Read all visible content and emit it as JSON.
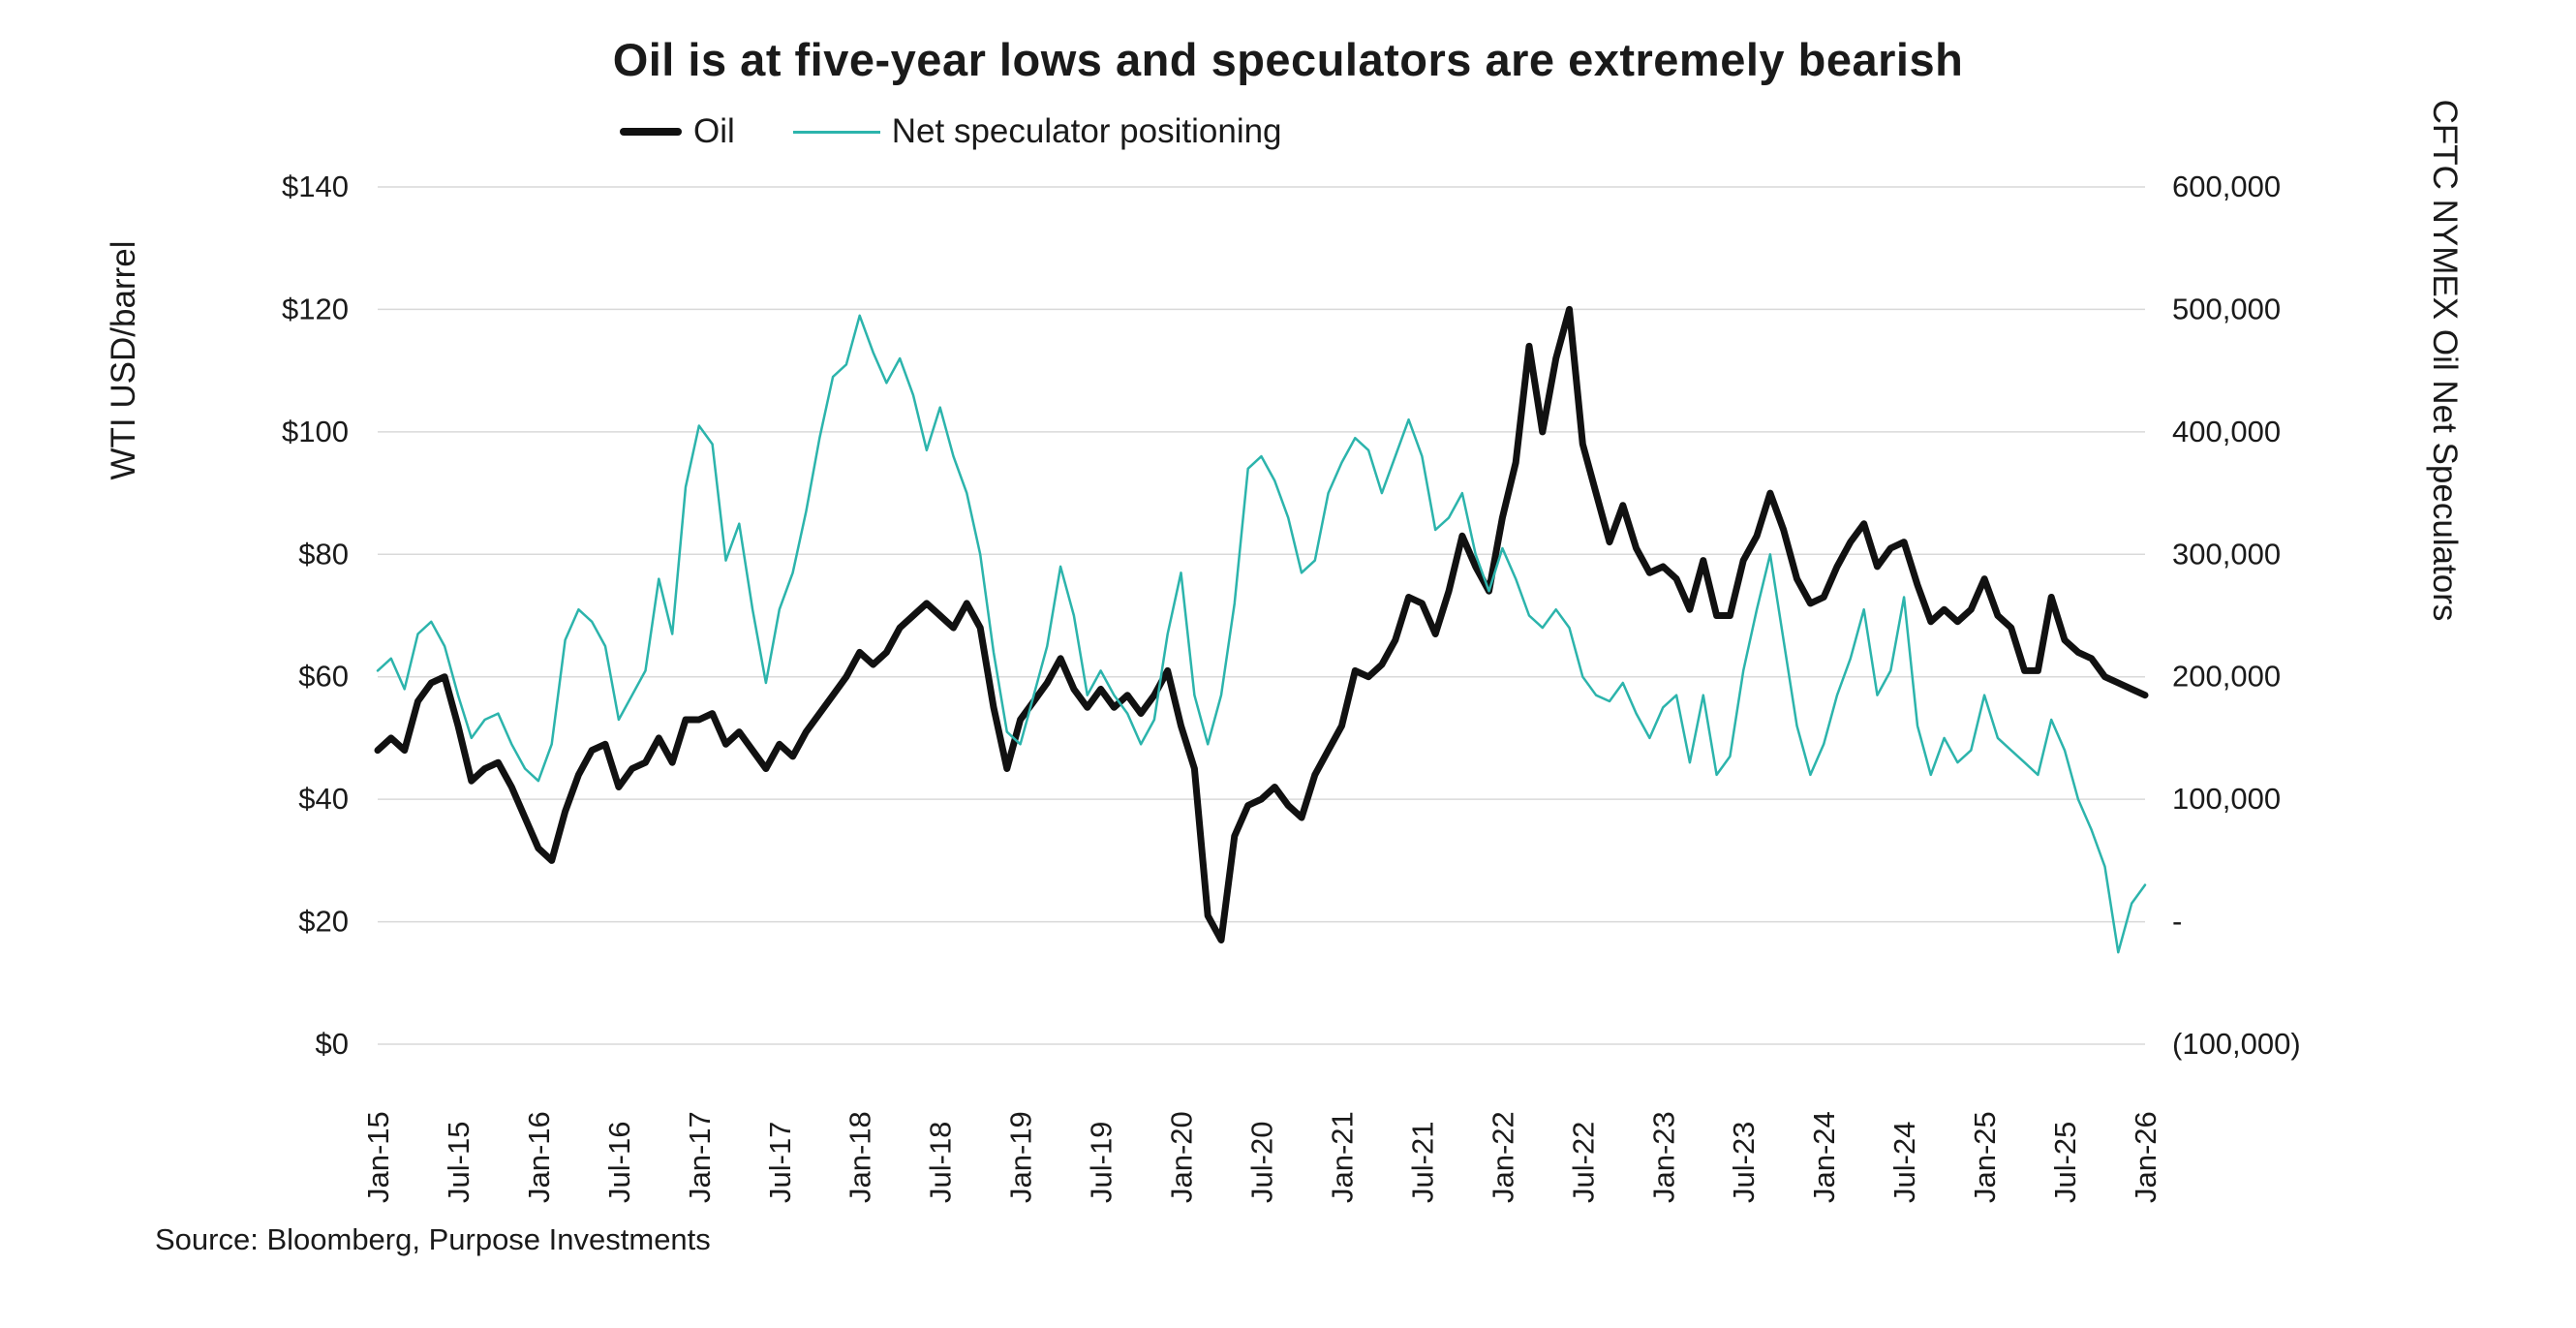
{
  "title": "Oil is at five-year lows and speculators are extremely bearish",
  "source": "Source: Bloomberg, Purpose Investments",
  "legend": {
    "oil": "Oil",
    "spec": "Net speculator positioning"
  },
  "axes": {
    "left_title": "WTI USD/barrel",
    "right_title": "CFTC NYMEX Oil Net Speculators",
    "left_ticks": [
      "$0",
      "$20",
      "$40",
      "$60",
      "$80",
      "$100",
      "$120",
      "$140"
    ],
    "right_ticks": [
      "(100,000)",
      "-",
      "100,000",
      "200,000",
      "300,000",
      "400,000",
      "500,000",
      "600,000"
    ],
    "x_ticks": [
      "Jan-15",
      "Jul-15",
      "Jan-16",
      "Jul-16",
      "Jan-17",
      "Jul-17",
      "Jan-18",
      "Jul-18",
      "Jan-19",
      "Jul-19",
      "Jan-20",
      "Jul-20",
      "Jan-21",
      "Jul-21",
      "Jan-22",
      "Jul-22",
      "Jan-23",
      "Jul-23",
      "Jan-24",
      "Jul-24",
      "Jan-25",
      "Jul-25",
      "Jan-26"
    ]
  },
  "colors": {
    "oil": "#111111",
    "spec": "#2cb4ac",
    "grid": "#d9d9d9",
    "text": "#1a1a1a"
  },
  "chart_data": {
    "type": "line",
    "title": "Oil is at five-year lows and speculators are extremely bearish",
    "x_start": "2015-01",
    "x_interval": "monthly",
    "n_points": 133,
    "x_tick_labels": [
      "Jan-15",
      "Jul-15",
      "Jan-16",
      "Jul-16",
      "Jan-17",
      "Jul-17",
      "Jan-18",
      "Jul-18",
      "Jan-19",
      "Jul-19",
      "Jan-20",
      "Jul-20",
      "Jan-21",
      "Jul-21",
      "Jan-22",
      "Jul-22",
      "Jan-23",
      "Jul-23",
      "Jan-24",
      "Jul-24",
      "Jan-25",
      "Jul-25",
      "Jan-26"
    ],
    "grid": true,
    "legend_position": "top-center",
    "left_axis": {
      "label": "WTI USD/barrel",
      "range": [
        0,
        140
      ],
      "tick_step": 20,
      "unit": "USD/barrel"
    },
    "right_axis": {
      "label": "CFTC NYMEX Oil Net Speculators",
      "range": [
        -100000,
        600000
      ],
      "tick_step": 100000,
      "unit": "contracts"
    },
    "series": [
      {
        "name": "Oil",
        "axis": "left",
        "color": "#111111",
        "values": [
          48,
          50,
          48,
          56,
          59,
          60,
          52,
          43,
          45,
          46,
          42,
          37,
          32,
          30,
          38,
          44,
          48,
          49,
          42,
          45,
          46,
          50,
          46,
          53,
          53,
          54,
          49,
          51,
          48,
          45,
          49,
          47,
          51,
          54,
          57,
          60,
          64,
          62,
          64,
          68,
          70,
          72,
          70,
          68,
          72,
          68,
          55,
          45,
          53,
          56,
          59,
          63,
          58,
          55,
          58,
          55,
          57,
          54,
          57,
          61,
          52,
          45,
          21,
          17,
          34,
          39,
          40,
          42,
          39,
          37,
          44,
          48,
          52,
          61,
          60,
          62,
          66,
          73,
          72,
          67,
          74,
          83,
          78,
          74,
          86,
          95,
          114,
          100,
          112,
          120,
          98,
          90,
          82,
          88,
          81,
          77,
          78,
          76,
          71,
          79,
          70,
          70,
          79,
          83,
          90,
          84,
          76,
          72,
          73,
          78,
          82,
          85,
          78,
          81,
          82,
          75,
          69,
          71,
          69,
          71,
          76,
          70,
          68,
          61,
          61,
          73,
          66,
          64,
          63,
          60,
          59,
          58,
          57
        ]
      },
      {
        "name": "Net speculator positioning",
        "axis": "right",
        "color": "#2cb4ac",
        "values": [
          205000,
          215000,
          190000,
          235000,
          245000,
          225000,
          185000,
          150000,
          165000,
          170000,
          145000,
          125000,
          115000,
          145000,
          230000,
          255000,
          245000,
          225000,
          165000,
          185000,
          205000,
          280000,
          235000,
          355000,
          405000,
          390000,
          295000,
          325000,
          255000,
          195000,
          255000,
          285000,
          335000,
          395000,
          445000,
          455000,
          495000,
          465000,
          440000,
          460000,
          430000,
          385000,
          420000,
          380000,
          350000,
          300000,
          220000,
          155000,
          145000,
          185000,
          225000,
          290000,
          250000,
          185000,
          205000,
          185000,
          170000,
          145000,
          165000,
          235000,
          285000,
          185000,
          145000,
          185000,
          260000,
          370000,
          380000,
          360000,
          330000,
          285000,
          295000,
          350000,
          375000,
          395000,
          385000,
          350000,
          380000,
          410000,
          380000,
          320000,
          330000,
          350000,
          300000,
          270000,
          305000,
          280000,
          250000,
          240000,
          255000,
          240000,
          200000,
          185000,
          180000,
          195000,
          170000,
          150000,
          175000,
          185000,
          130000,
          185000,
          120000,
          135000,
          205000,
          255000,
          300000,
          230000,
          160000,
          120000,
          145000,
          185000,
          215000,
          255000,
          185000,
          205000,
          265000,
          160000,
          120000,
          150000,
          130000,
          140000,
          185000,
          150000,
          140000,
          130000,
          120000,
          165000,
          140000,
          100000,
          75000,
          45000,
          -25000,
          15000,
          30000
        ]
      }
    ]
  }
}
